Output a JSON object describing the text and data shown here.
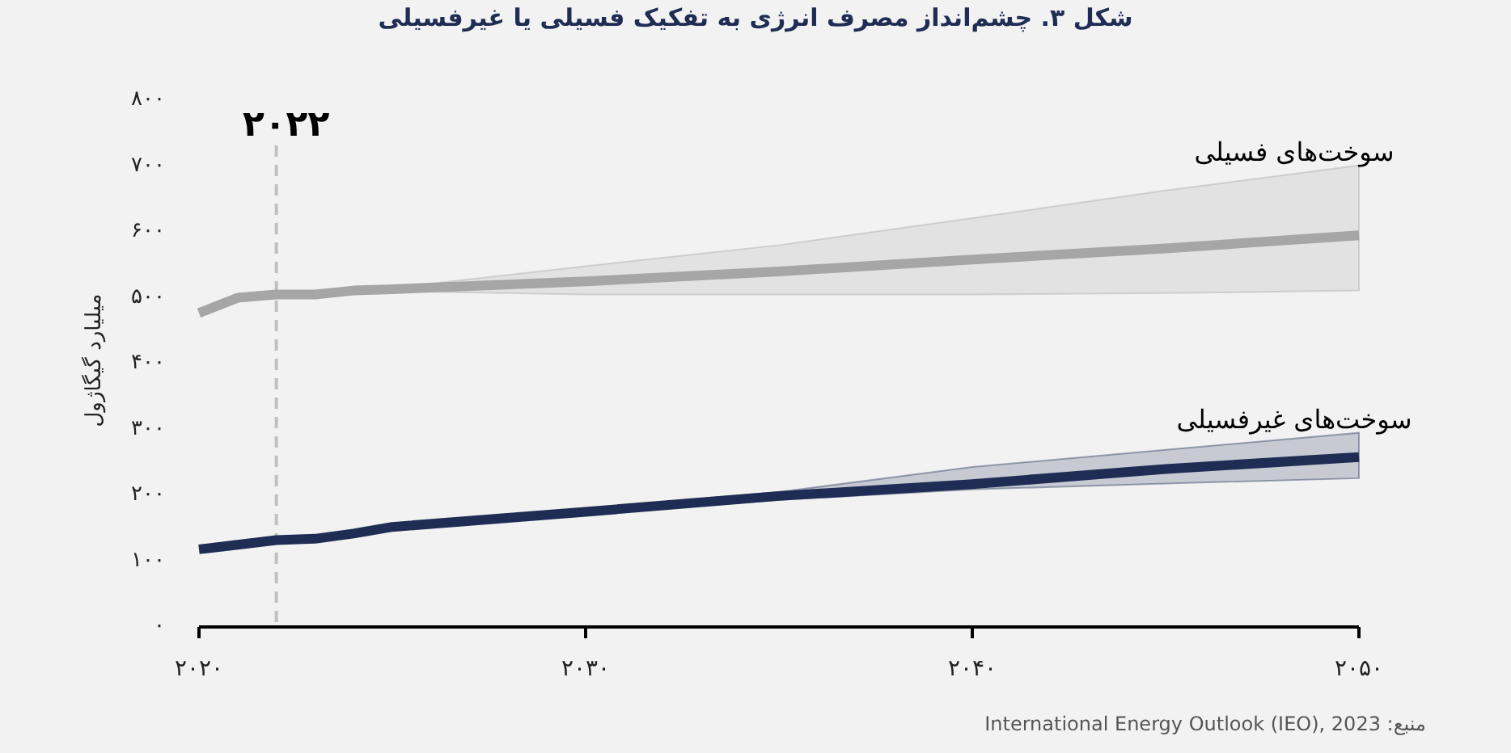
{
  "chart_data": {
    "type": "line",
    "title": "شکل ۳. چشم‌انداز مصرف انرژی به تفکیک فسیلی یا غیرفسیلی",
    "ylabel": "میلیارد گیگاژول",
    "x": [
      2020,
      2021,
      2022,
      2023,
      2024,
      2025,
      2030,
      2035,
      2040,
      2045,
      2050
    ],
    "series": [
      {
        "name": "سوخت‌های فسیلی",
        "color": "#a6a6a6",
        "values": [
          472,
          495,
          500,
          500,
          506,
          508,
          520,
          535,
          553,
          570,
          590
        ],
        "upper": [
          null,
          null,
          null,
          null,
          506,
          510,
          543,
          575,
          616,
          658,
          696
        ],
        "lower": [
          null,
          null,
          null,
          null,
          506,
          505,
          500,
          500,
          500,
          502,
          506
        ]
      },
      {
        "name": "سوخت‌های غیرفسیلی",
        "color": "#1f2d54",
        "values": [
          113,
          120,
          127,
          129,
          137,
          147,
          170,
          194,
          212,
          235,
          253
        ],
        "upper": [
          null,
          null,
          null,
          null,
          null,
          147,
          175,
          200,
          238,
          264,
          290
        ],
        "lower": [
          null,
          null,
          null,
          null,
          null,
          147,
          166,
          188,
          204,
          213,
          221
        ]
      }
    ],
    "xlim": [
      2020,
      2050
    ],
    "xticks": [
      {
        "value": 2020,
        "label": "۲۰۲۰"
      },
      {
        "value": 2030,
        "label": "۲۰۳۰"
      },
      {
        "value": 2040,
        "label": "۲۰۴۰"
      },
      {
        "value": 2050,
        "label": "۲۰۵۰"
      }
    ],
    "ylim": [
      0,
      800
    ],
    "yticks": [
      {
        "value": 0,
        "label": "۰"
      },
      {
        "value": 100,
        "label": "۱۰۰"
      },
      {
        "value": 200,
        "label": "۲۰۰"
      },
      {
        "value": 300,
        "label": "۳۰۰"
      },
      {
        "value": 400,
        "label": "۴۰۰"
      },
      {
        "value": 500,
        "label": "۵۰۰"
      },
      {
        "value": 600,
        "label": "۶۰۰"
      },
      {
        "value": 700,
        "label": "۷۰۰"
      },
      {
        "value": 800,
        "label": "۸۰۰"
      }
    ],
    "ref_lines": [
      {
        "axis": "x",
        "value": 2022,
        "label": "۲۰۲۲",
        "color": "#c0c0c0",
        "line_style": "dashed"
      }
    ],
    "annotations": [
      "منبع: International Energy Outlook (IEO), 2023"
    ],
    "grid": false,
    "marker": "none",
    "line_style": "solid"
  }
}
